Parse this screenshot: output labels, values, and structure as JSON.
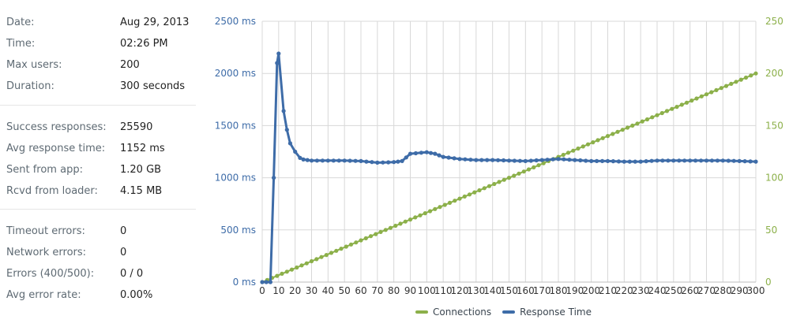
{
  "stats": {
    "groups": [
      [
        {
          "label": "Date:",
          "value": "Aug 29, 2013"
        },
        {
          "label": "Time:",
          "value": "02:26 PM"
        },
        {
          "label": "Max users:",
          "value": "200"
        },
        {
          "label": "Duration:",
          "value": "300 seconds"
        }
      ],
      [
        {
          "label": "Success responses:",
          "value": "25590"
        },
        {
          "label": "Avg response time:",
          "value": "1152 ms"
        },
        {
          "label": "Sent from app:",
          "value": "1.20 GB"
        },
        {
          "label": "Rcvd from loader:",
          "value": "4.15 MB"
        }
      ],
      [
        {
          "label": "Timeout errors:",
          "value": "0"
        },
        {
          "label": "Network errors:",
          "value": "0"
        },
        {
          "label": "Errors (400/500):",
          "value": "0 / 0"
        },
        {
          "label": "Avg error rate:",
          "value": "0.00%"
        }
      ]
    ]
  },
  "chart_data": {
    "type": "line",
    "x_ticks": [
      0,
      10,
      20,
      30,
      40,
      50,
      60,
      70,
      80,
      90,
      100,
      110,
      120,
      130,
      140,
      150,
      160,
      170,
      180,
      190,
      200,
      210,
      220,
      230,
      240,
      250,
      260,
      270,
      280,
      290,
      300
    ],
    "xlim": [
      0,
      300
    ],
    "y_left": {
      "ticks": [
        0,
        500,
        1000,
        1500,
        2000,
        2500
      ],
      "tick_labels": [
        "0 ms",
        "500 ms",
        "1000 ms",
        "1500 ms",
        "2000 ms",
        "2500 ms"
      ],
      "range": [
        0,
        2500
      ]
    },
    "y_right": {
      "ticks": [
        0,
        50,
        100,
        150,
        200,
        250
      ],
      "tick_labels": [
        "0",
        "50",
        "100",
        "150",
        "200",
        "250"
      ],
      "range": [
        0,
        250
      ]
    },
    "grid": true,
    "legend_position": "bottom",
    "series": [
      {
        "name": "Connections",
        "axis": "right",
        "color": "#8cb04a",
        "x": [
          0,
          300
        ],
        "values": [
          0,
          200
        ]
      },
      {
        "name": "Response Time",
        "axis": "left",
        "color": "#3e6ca8",
        "x": [
          0,
          5,
          7,
          9,
          10,
          13,
          15,
          17,
          20,
          23,
          25,
          30,
          40,
          50,
          60,
          70,
          80,
          85,
          90,
          100,
          105,
          110,
          120,
          130,
          140,
          150,
          160,
          170,
          180,
          190,
          200,
          210,
          220,
          230,
          240,
          250,
          260,
          270,
          280,
          290,
          300
        ],
        "values": [
          0,
          0,
          1000,
          2100,
          2190,
          1640,
          1460,
          1330,
          1250,
          1190,
          1175,
          1165,
          1165,
          1165,
          1160,
          1145,
          1150,
          1160,
          1230,
          1245,
          1230,
          1200,
          1180,
          1170,
          1170,
          1165,
          1160,
          1170,
          1180,
          1170,
          1160,
          1160,
          1155,
          1155,
          1165,
          1165,
          1165,
          1165,
          1165,
          1160,
          1155
        ]
      }
    ]
  }
}
